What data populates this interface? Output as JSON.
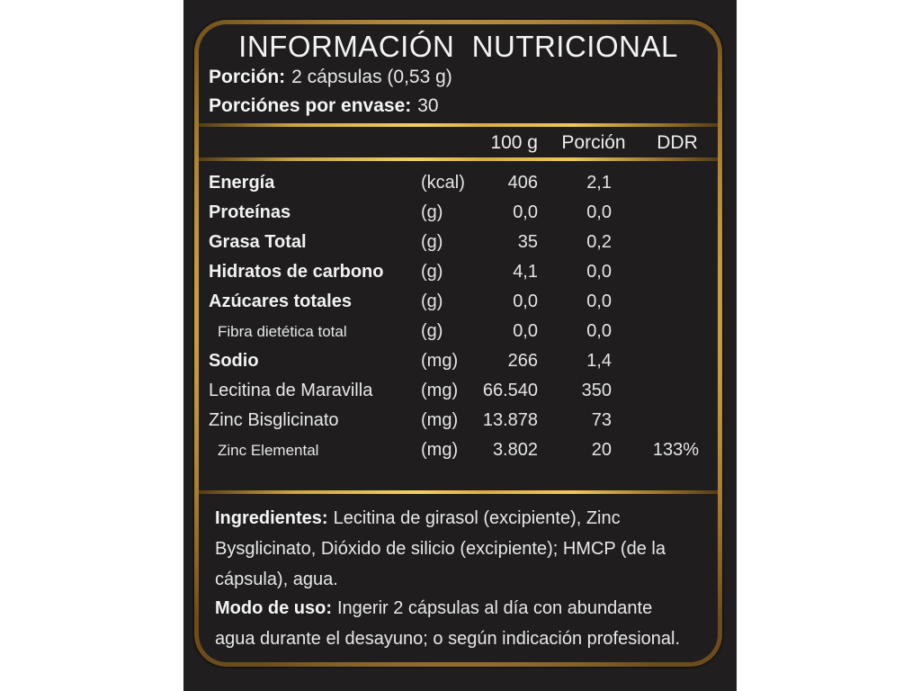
{
  "title": "INFORMACIÓN  NUTRICIONAL",
  "serving": {
    "label": "Porción:",
    "value": "2 cápsulas (0,53 g)"
  },
  "servings_per_pack": {
    "label": "Porciónes por envase:",
    "value": "30"
  },
  "table": {
    "headers": {
      "per_100g": "100 g",
      "portion": "Porción",
      "ddr": "DDR"
    },
    "rows": [
      {
        "name": "Energía",
        "unit": "(kcal)",
        "per_100g": "406",
        "portion": "2,1",
        "ddr": ""
      },
      {
        "name": "Proteínas",
        "unit": "(g)",
        "per_100g": "0,0",
        "portion": "0,0",
        "ddr": ""
      },
      {
        "name": "Grasa Total",
        "unit": "(g)",
        "per_100g": "35",
        "portion": "0,2",
        "ddr": ""
      },
      {
        "name": "Hidratos de carbono",
        "unit": "(g)",
        "per_100g": "4,1",
        "portion": "0,0",
        "ddr": ""
      },
      {
        "name": "Azúcares totales",
        "unit": "(g)",
        "per_100g": "0,0",
        "portion": "0,0",
        "ddr": ""
      },
      {
        "name": "Fibra dietética total",
        "unit": "(g)",
        "per_100g": "0,0",
        "portion": "0,0",
        "ddr": ""
      },
      {
        "name": "Sodio",
        "unit": "(mg)",
        "per_100g": "266",
        "portion": "1,4",
        "ddr": ""
      },
      {
        "name": "Lecitina de Maravilla",
        "unit": "(mg)",
        "per_100g": "66.540",
        "portion": "350",
        "ddr": ""
      },
      {
        "name": "Zinc Bisglicinato",
        "unit": "(mg)",
        "per_100g": "13.878",
        "portion": "73",
        "ddr": ""
      },
      {
        "name": "Zinc Elemental",
        "unit": "(mg)",
        "per_100g": "3.802",
        "portion": "20",
        "ddr": "133%"
      }
    ]
  },
  "ingredients": {
    "label": "Ingredientes:",
    "lines": [
      "Lecitina de girasol (excipiente), Zinc",
      "Bysglicinato, Dióxido de silicio (excipiente); HMCP (de la",
      "cápsula), agua."
    ]
  },
  "usage": {
    "label": "Modo de uso:",
    "lines": [
      "Ingerir 2 cápsulas al día con abundante",
      "agua durante el desayuno; o según indicación profesional."
    ]
  },
  "colors": {
    "page_background": "#ffffff",
    "panel_background": "#1f1d1d",
    "gold_bright": "#f4cf67",
    "gold_mid": "#d2a744",
    "gold_dark": "#6b4c1c",
    "text": "#e8e8e8"
  }
}
